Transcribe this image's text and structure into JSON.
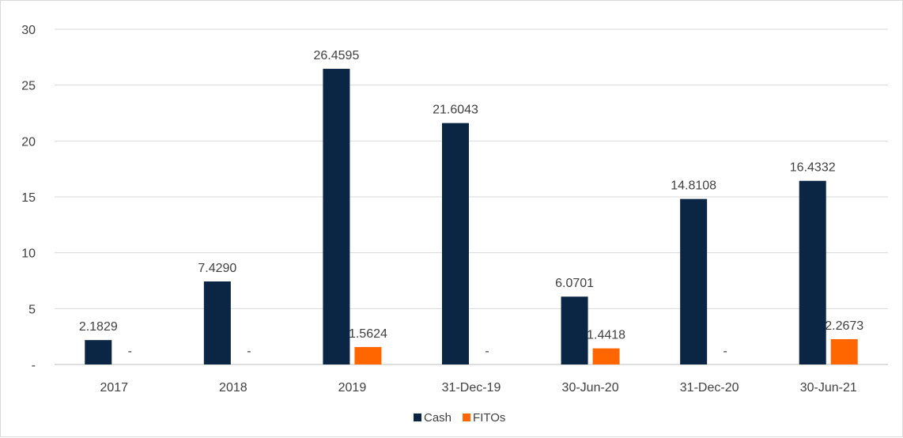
{
  "chart_data": {
    "type": "bar",
    "categories": [
      "2017",
      "2018",
      "2019",
      "31-Dec-19",
      "30-Jun-20",
      "31-Dec-20",
      "30-Jun-21"
    ],
    "series": [
      {
        "name": "Cash",
        "color": "#0b2545",
        "values": [
          2.1829,
          7.429,
          26.4595,
          21.6043,
          6.0701,
          14.8108,
          16.4332
        ],
        "labels": [
          "2.1829",
          "7.4290",
          "26.4595",
          "21.6043",
          "6.0701",
          "14.8108",
          "16.4332"
        ]
      },
      {
        "name": "FITOs",
        "color": "#ff6600",
        "values": [
          0,
          0,
          1.5624,
          0,
          1.4418,
          0,
          2.2673
        ],
        "labels": [
          "-",
          "-",
          "1.5624",
          "-",
          "1.4418",
          "-",
          "2.2673"
        ]
      }
    ],
    "yticks": [
      "-",
      "5",
      "10",
      "15",
      "20",
      "25",
      "30"
    ],
    "ylim": [
      0,
      30
    ],
    "grid": true,
    "legend_position": "bottom"
  }
}
